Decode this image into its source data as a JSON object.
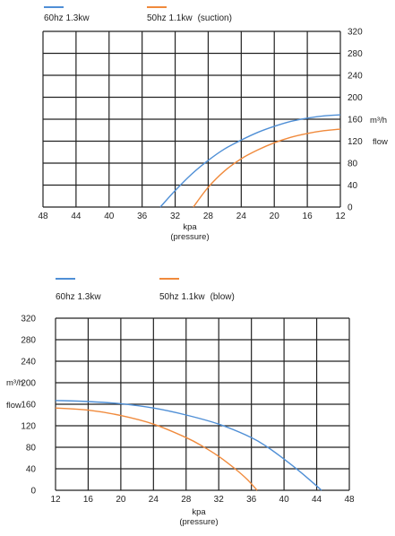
{
  "chart_data": [
    {
      "type": "line",
      "subtitle": "(suction)",
      "xlabel": "kpa",
      "xlabel_sub": "(pressure)",
      "ylabel_unit": "m³/h",
      "ylabel": "flow",
      "x_reversed": true,
      "xlim": [
        48,
        12
      ],
      "ylim": [
        0,
        320
      ],
      "xticks": [
        48,
        44,
        40,
        36,
        32,
        28,
        24,
        20,
        16,
        12
      ],
      "yticks": [
        0,
        40,
        80,
        120,
        160,
        200,
        240,
        280,
        320
      ],
      "y_axis_position": "right",
      "grid": true,
      "legend_position": "top-left",
      "series": [
        {
          "name": "60hz 1.3kw",
          "color": "#4f8fd6",
          "x": [
            33.8,
            32,
            30,
            28,
            26,
            24,
            22,
            20,
            18,
            16,
            14,
            12
          ],
          "y": [
            0,
            30,
            60,
            85,
            106,
            122,
            136,
            147,
            156,
            162,
            166,
            168
          ]
        },
        {
          "name": "50hz 1.1kw",
          "color": "#f08a3c",
          "x": [
            29.8,
            28,
            26,
            24,
            22,
            20,
            18,
            16,
            14,
            12
          ],
          "y": [
            0,
            36,
            66,
            88,
            104,
            117,
            127,
            134,
            139,
            142
          ]
        }
      ]
    },
    {
      "type": "line",
      "subtitle": "(blow)",
      "xlabel": "kpa",
      "xlabel_sub": "(pressure)",
      "ylabel_unit": "m³/h",
      "ylabel": "flow",
      "x_reversed": false,
      "xlim": [
        12,
        48
      ],
      "ylim": [
        0,
        320
      ],
      "xticks": [
        12,
        16,
        20,
        24,
        28,
        32,
        36,
        40,
        44,
        48
      ],
      "yticks": [
        0,
        40,
        80,
        120,
        160,
        200,
        240,
        280,
        320
      ],
      "y_axis_position": "left",
      "grid": true,
      "legend_position": "top-left",
      "series": [
        {
          "name": "60hz 1.3kw",
          "color": "#4f8fd6",
          "x": [
            12,
            16,
            20,
            24,
            28,
            32,
            36,
            38,
            40,
            42,
            44,
            44.6
          ],
          "y": [
            167,
            165,
            161,
            153,
            140,
            123,
            98,
            80,
            58,
            34,
            8,
            0
          ]
        },
        {
          "name": "50hz 1.1kw",
          "color": "#f08a3c",
          "x": [
            12,
            16,
            20,
            24,
            28,
            30,
            32,
            34,
            35.5,
            36.7
          ],
          "y": [
            153,
            149,
            139,
            123,
            98,
            82,
            63,
            40,
            20,
            0
          ]
        }
      ]
    }
  ]
}
